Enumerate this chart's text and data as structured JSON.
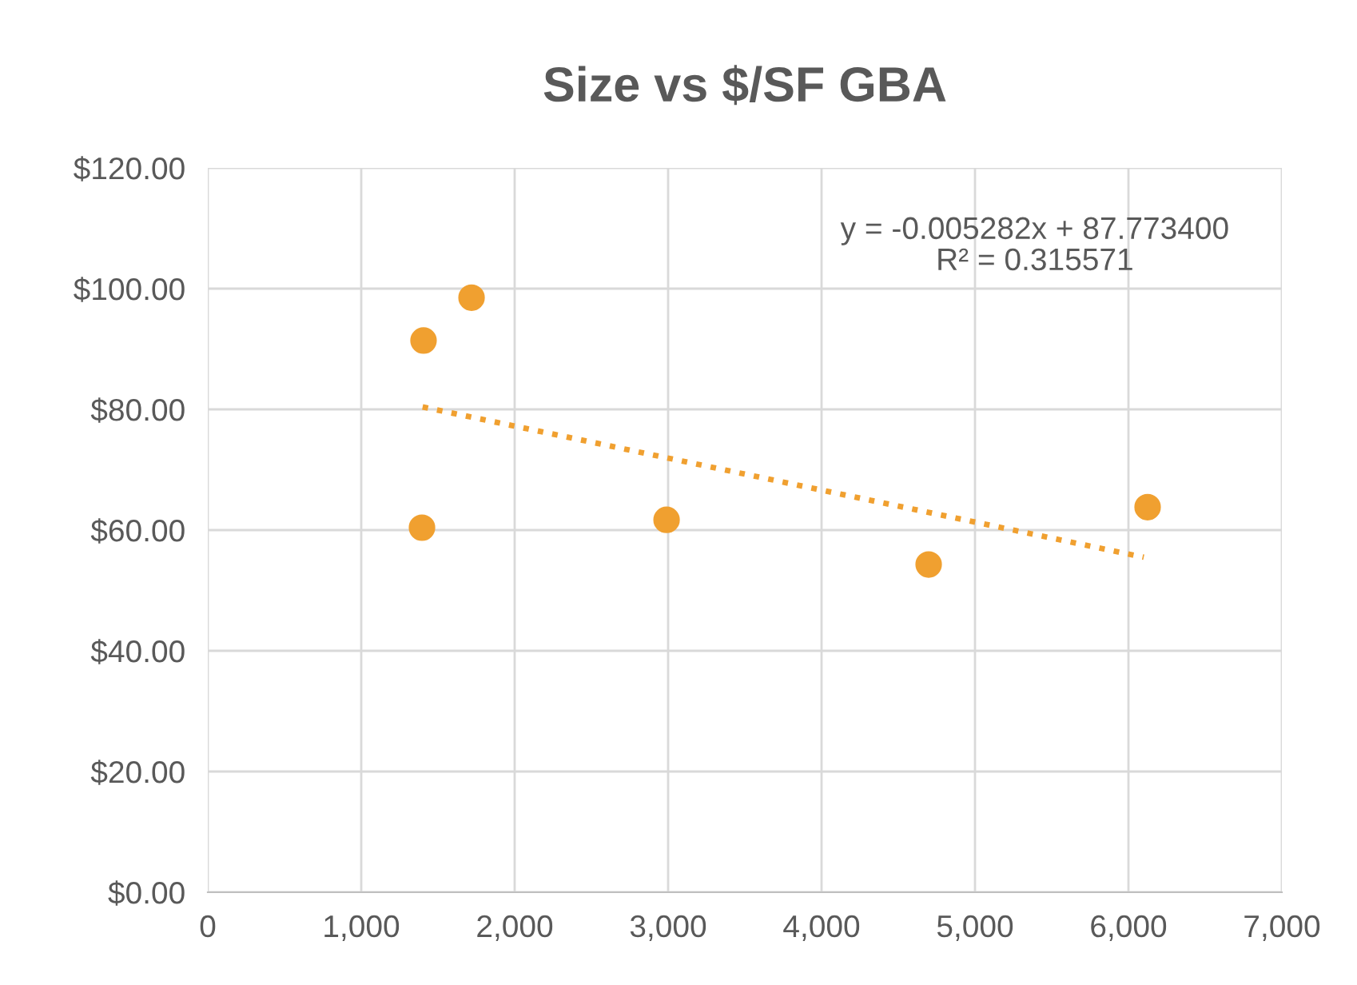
{
  "chart_data": {
    "type": "scatter",
    "title": "Size vs $/SF GBA",
    "series": [
      {
        "color": "#f0a030",
        "x": [
          1406,
          1719,
          1396,
          2990,
          4698,
          6125
        ],
        "values": [
          91.4,
          98.5,
          60.4,
          61.7,
          54.3,
          63.8
        ],
        "marker": "circle"
      },
      {
        "type": "line",
        "color": "#f0a030",
        "x": [
          1400,
          6100
        ],
        "values": [
          80.4,
          55.5
        ],
        "line_style": "dotted",
        "marker": "none"
      }
    ],
    "annotations": [
      "y = -0.005282x + 87.773400\nR² = 0.315571"
    ],
    "xlim": [
      0,
      7000
    ],
    "xticks": [
      0,
      {
        "value": 1000,
        "label": "1,000"
      },
      {
        "value": 2000,
        "label": "2,000"
      },
      {
        "value": 3000,
        "label": "3,000"
      },
      {
        "value": 4000,
        "label": "4,000"
      },
      {
        "value": 5000,
        "label": "5,000"
      },
      {
        "value": 6000,
        "label": "6,000"
      },
      {
        "value": 7000,
        "label": "7,000"
      }
    ],
    "ylim": [
      0,
      120
    ],
    "yticks": [
      {
        "value": 0,
        "label": "$0.00"
      },
      {
        "value": 20,
        "label": "$20.00"
      },
      {
        "value": 40,
        "label": "$40.00"
      },
      {
        "value": 60,
        "label": "$60.00"
      },
      {
        "value": 80,
        "label": "$80.00"
      },
      {
        "value": 100,
        "label": "$100.00"
      },
      {
        "value": 120,
        "label": "$120.00"
      }
    ],
    "grid": true,
    "legend": false
  }
}
